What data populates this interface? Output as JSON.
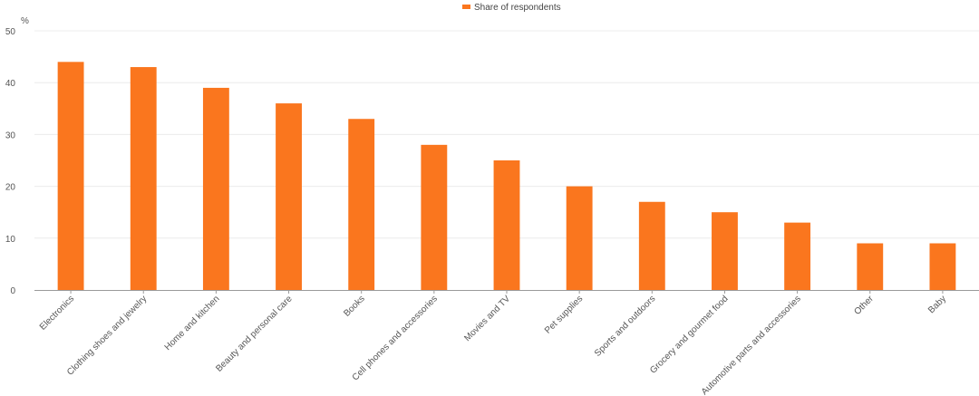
{
  "chart_data": {
    "type": "bar",
    "categories": [
      "Electronics",
      "Clothing shoes and jewelry",
      "Home and kitchen",
      "Beauty and personal care",
      "Books",
      "Cell phones and accessories",
      "Movies and TV",
      "Pet supplies",
      "Sports and outdoors",
      "Grocery and gourmet food",
      "Automotive parts and accessories",
      "Other",
      "Baby"
    ],
    "series": [
      {
        "name": "Share of respondents",
        "values": [
          44,
          43,
          39,
          36,
          33,
          28,
          25,
          20,
          17,
          15,
          13,
          9,
          9
        ]
      }
    ],
    "ylabel": "%",
    "ylim": [
      0,
      50
    ],
    "yticks": [
      0,
      10,
      20,
      30,
      40,
      50
    ],
    "grid": true,
    "legend_position": "top-center",
    "colors": {
      "bar": "#fa761e",
      "grid": "#ececec",
      "axis": "#9a9a9a"
    }
  }
}
